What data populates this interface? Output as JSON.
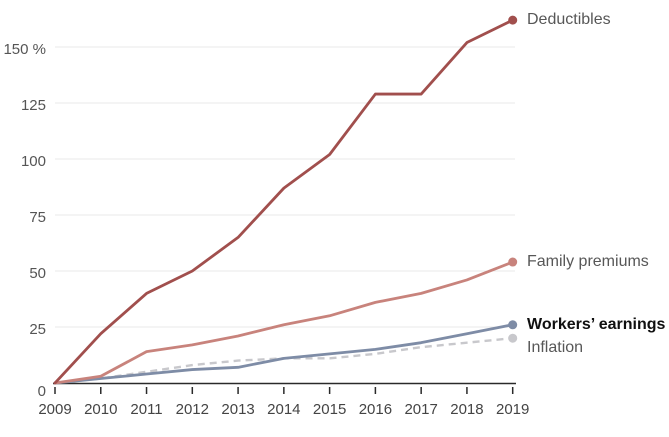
{
  "chart_data": {
    "type": "line",
    "title": "",
    "unit": "%",
    "x_tick_labels": [
      "2009",
      "2010",
      "2011",
      "2012",
      "2013",
      "2014",
      "2015",
      "2016",
      "2017",
      "2018",
      "2019"
    ],
    "y_axis": {
      "tick_values": [
        0,
        25,
        50,
        75,
        100,
        125,
        150
      ],
      "tick_labels": [
        "0",
        "25",
        "50",
        "75",
        "100",
        "125",
        "150 %"
      ],
      "range": [
        0,
        165
      ]
    },
    "grid": "horizontal",
    "legend_position": "end-of-line-labels",
    "series": [
      {
        "name": "Deductibles",
        "color": "#a14f4d",
        "line_style": "solid",
        "label_bold": false,
        "values": [
          0,
          22,
          40,
          50,
          65,
          87,
          102,
          129,
          129,
          152,
          162
        ]
      },
      {
        "name": "Family premiums",
        "color": "#c8837c",
        "line_style": "solid",
        "label_bold": false,
        "values": [
          0,
          3,
          14,
          17,
          21,
          26,
          30,
          36,
          40,
          46,
          54
        ]
      },
      {
        "name": "Workers’ earnings",
        "color": "#7e8ca6",
        "line_style": "solid",
        "label_bold": true,
        "values": [
          0,
          2,
          4,
          6,
          7,
          11,
          13,
          15,
          18,
          22,
          26
        ]
      },
      {
        "name": "Inflation",
        "color": "#c8c8cc",
        "line_style": "dashed",
        "label_bold": false,
        "values": [
          0,
          2,
          5,
          8,
          10,
          11,
          11,
          13,
          16,
          18,
          20
        ]
      }
    ],
    "axis_color": "#2a2a2a",
    "grid_color": "#e9e9e9"
  }
}
